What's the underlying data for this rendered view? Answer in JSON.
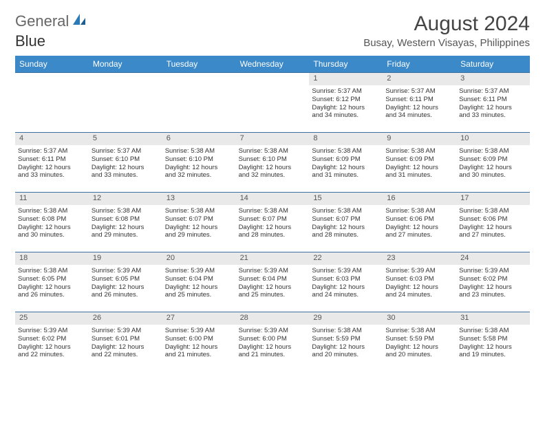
{
  "logo": {
    "text1": "General",
    "text2": "Blue"
  },
  "title": "August 2024",
  "location": "Busay, Western Visayas, Philippines",
  "colors": {
    "header_bg": "#3b89c9",
    "header_text": "#ffffff",
    "daynum_bg": "#e9e9e9",
    "week_border": "#3b6fa0",
    "text": "#333333",
    "logo_blue": "#2a7ab8"
  },
  "day_names": [
    "Sunday",
    "Monday",
    "Tuesday",
    "Wednesday",
    "Thursday",
    "Friday",
    "Saturday"
  ],
  "weeks": [
    [
      {
        "n": "",
        "sr": "",
        "ss": "",
        "d1": "",
        "d2": ""
      },
      {
        "n": "",
        "sr": "",
        "ss": "",
        "d1": "",
        "d2": ""
      },
      {
        "n": "",
        "sr": "",
        "ss": "",
        "d1": "",
        "d2": ""
      },
      {
        "n": "",
        "sr": "",
        "ss": "",
        "d1": "",
        "d2": ""
      },
      {
        "n": "1",
        "sr": "Sunrise: 5:37 AM",
        "ss": "Sunset: 6:12 PM",
        "d1": "Daylight: 12 hours",
        "d2": "and 34 minutes."
      },
      {
        "n": "2",
        "sr": "Sunrise: 5:37 AM",
        "ss": "Sunset: 6:11 PM",
        "d1": "Daylight: 12 hours",
        "d2": "and 34 minutes."
      },
      {
        "n": "3",
        "sr": "Sunrise: 5:37 AM",
        "ss": "Sunset: 6:11 PM",
        "d1": "Daylight: 12 hours",
        "d2": "and 33 minutes."
      }
    ],
    [
      {
        "n": "4",
        "sr": "Sunrise: 5:37 AM",
        "ss": "Sunset: 6:11 PM",
        "d1": "Daylight: 12 hours",
        "d2": "and 33 minutes."
      },
      {
        "n": "5",
        "sr": "Sunrise: 5:37 AM",
        "ss": "Sunset: 6:10 PM",
        "d1": "Daylight: 12 hours",
        "d2": "and 33 minutes."
      },
      {
        "n": "6",
        "sr": "Sunrise: 5:38 AM",
        "ss": "Sunset: 6:10 PM",
        "d1": "Daylight: 12 hours",
        "d2": "and 32 minutes."
      },
      {
        "n": "7",
        "sr": "Sunrise: 5:38 AM",
        "ss": "Sunset: 6:10 PM",
        "d1": "Daylight: 12 hours",
        "d2": "and 32 minutes."
      },
      {
        "n": "8",
        "sr": "Sunrise: 5:38 AM",
        "ss": "Sunset: 6:09 PM",
        "d1": "Daylight: 12 hours",
        "d2": "and 31 minutes."
      },
      {
        "n": "9",
        "sr": "Sunrise: 5:38 AM",
        "ss": "Sunset: 6:09 PM",
        "d1": "Daylight: 12 hours",
        "d2": "and 31 minutes."
      },
      {
        "n": "10",
        "sr": "Sunrise: 5:38 AM",
        "ss": "Sunset: 6:09 PM",
        "d1": "Daylight: 12 hours",
        "d2": "and 30 minutes."
      }
    ],
    [
      {
        "n": "11",
        "sr": "Sunrise: 5:38 AM",
        "ss": "Sunset: 6:08 PM",
        "d1": "Daylight: 12 hours",
        "d2": "and 30 minutes."
      },
      {
        "n": "12",
        "sr": "Sunrise: 5:38 AM",
        "ss": "Sunset: 6:08 PM",
        "d1": "Daylight: 12 hours",
        "d2": "and 29 minutes."
      },
      {
        "n": "13",
        "sr": "Sunrise: 5:38 AM",
        "ss": "Sunset: 6:07 PM",
        "d1": "Daylight: 12 hours",
        "d2": "and 29 minutes."
      },
      {
        "n": "14",
        "sr": "Sunrise: 5:38 AM",
        "ss": "Sunset: 6:07 PM",
        "d1": "Daylight: 12 hours",
        "d2": "and 28 minutes."
      },
      {
        "n": "15",
        "sr": "Sunrise: 5:38 AM",
        "ss": "Sunset: 6:07 PM",
        "d1": "Daylight: 12 hours",
        "d2": "and 28 minutes."
      },
      {
        "n": "16",
        "sr": "Sunrise: 5:38 AM",
        "ss": "Sunset: 6:06 PM",
        "d1": "Daylight: 12 hours",
        "d2": "and 27 minutes."
      },
      {
        "n": "17",
        "sr": "Sunrise: 5:38 AM",
        "ss": "Sunset: 6:06 PM",
        "d1": "Daylight: 12 hours",
        "d2": "and 27 minutes."
      }
    ],
    [
      {
        "n": "18",
        "sr": "Sunrise: 5:38 AM",
        "ss": "Sunset: 6:05 PM",
        "d1": "Daylight: 12 hours",
        "d2": "and 26 minutes."
      },
      {
        "n": "19",
        "sr": "Sunrise: 5:39 AM",
        "ss": "Sunset: 6:05 PM",
        "d1": "Daylight: 12 hours",
        "d2": "and 26 minutes."
      },
      {
        "n": "20",
        "sr": "Sunrise: 5:39 AM",
        "ss": "Sunset: 6:04 PM",
        "d1": "Daylight: 12 hours",
        "d2": "and 25 minutes."
      },
      {
        "n": "21",
        "sr": "Sunrise: 5:39 AM",
        "ss": "Sunset: 6:04 PM",
        "d1": "Daylight: 12 hours",
        "d2": "and 25 minutes."
      },
      {
        "n": "22",
        "sr": "Sunrise: 5:39 AM",
        "ss": "Sunset: 6:03 PM",
        "d1": "Daylight: 12 hours",
        "d2": "and 24 minutes."
      },
      {
        "n": "23",
        "sr": "Sunrise: 5:39 AM",
        "ss": "Sunset: 6:03 PM",
        "d1": "Daylight: 12 hours",
        "d2": "and 24 minutes."
      },
      {
        "n": "24",
        "sr": "Sunrise: 5:39 AM",
        "ss": "Sunset: 6:02 PM",
        "d1": "Daylight: 12 hours",
        "d2": "and 23 minutes."
      }
    ],
    [
      {
        "n": "25",
        "sr": "Sunrise: 5:39 AM",
        "ss": "Sunset: 6:02 PM",
        "d1": "Daylight: 12 hours",
        "d2": "and 22 minutes."
      },
      {
        "n": "26",
        "sr": "Sunrise: 5:39 AM",
        "ss": "Sunset: 6:01 PM",
        "d1": "Daylight: 12 hours",
        "d2": "and 22 minutes."
      },
      {
        "n": "27",
        "sr": "Sunrise: 5:39 AM",
        "ss": "Sunset: 6:00 PM",
        "d1": "Daylight: 12 hours",
        "d2": "and 21 minutes."
      },
      {
        "n": "28",
        "sr": "Sunrise: 5:39 AM",
        "ss": "Sunset: 6:00 PM",
        "d1": "Daylight: 12 hours",
        "d2": "and 21 minutes."
      },
      {
        "n": "29",
        "sr": "Sunrise: 5:38 AM",
        "ss": "Sunset: 5:59 PM",
        "d1": "Daylight: 12 hours",
        "d2": "and 20 minutes."
      },
      {
        "n": "30",
        "sr": "Sunrise: 5:38 AM",
        "ss": "Sunset: 5:59 PM",
        "d1": "Daylight: 12 hours",
        "d2": "and 20 minutes."
      },
      {
        "n": "31",
        "sr": "Sunrise: 5:38 AM",
        "ss": "Sunset: 5:58 PM",
        "d1": "Daylight: 12 hours",
        "d2": "and 19 minutes."
      }
    ]
  ]
}
